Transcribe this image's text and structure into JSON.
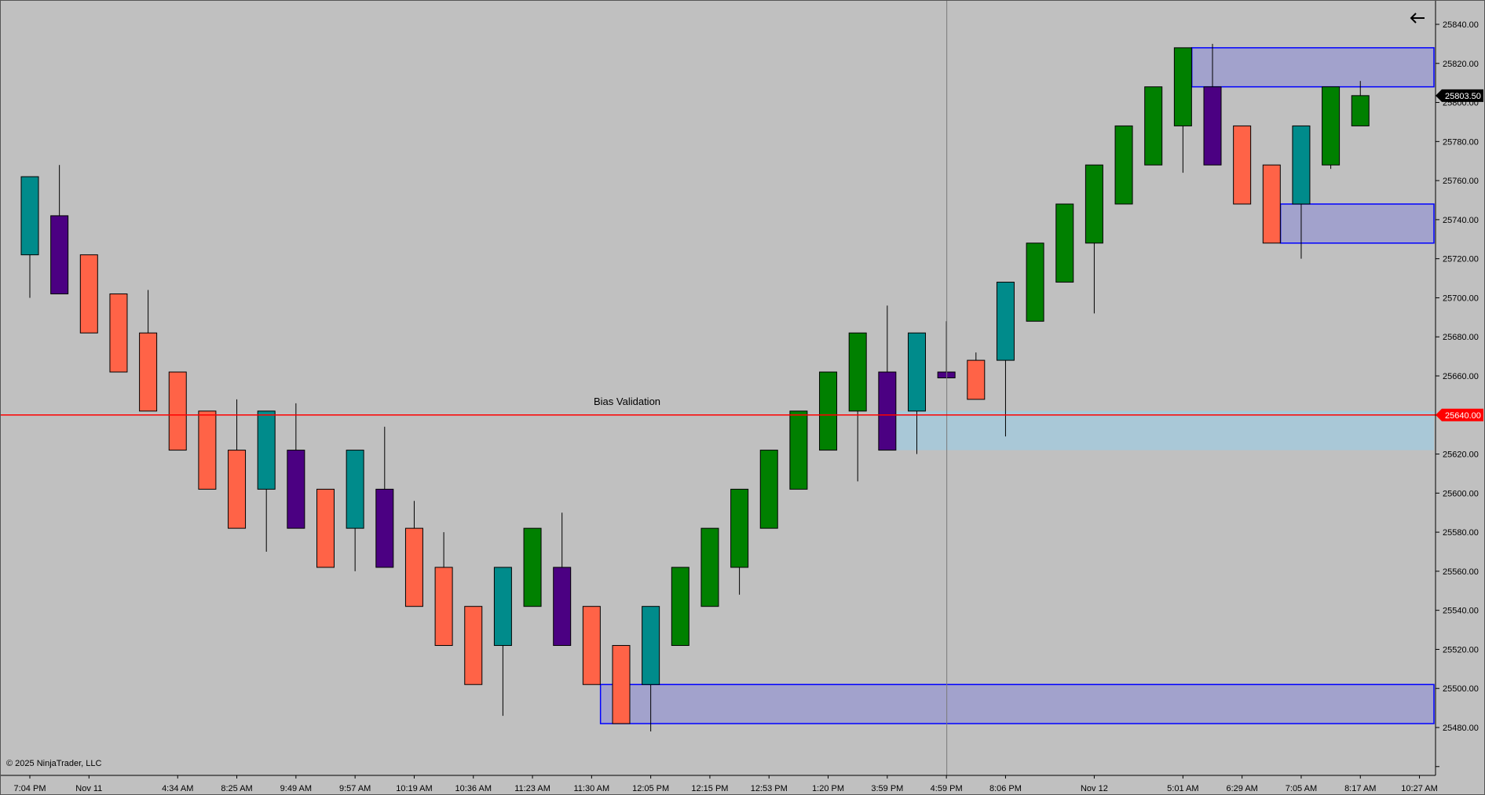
{
  "chart_data": {
    "type": "candlestick",
    "y_axis": {
      "ylim": [
        25470,
        25850
      ],
      "tick_labels": [
        "25840.00",
        "25820.00",
        "25800.00",
        "25780.00",
        "25760.00",
        "25740.00",
        "25720.00",
        "25700.00",
        "25680.00",
        "25660.00",
        "25640.00",
        "25620.00",
        "25600.00",
        "25580.00",
        "25560.00",
        "25540.00",
        "25520.00",
        "25500.00",
        "25480.00"
      ],
      "ticks": [
        25840,
        25820,
        25800,
        25780,
        25760,
        25740,
        25720,
        25700,
        25680,
        25660,
        25640,
        25620,
        25600,
        25580,
        25560,
        25540,
        25520,
        25500,
        25480
      ]
    },
    "x_axis": {
      "tick_labels": [
        {
          "label": "7:04 PM",
          "bar": 0
        },
        {
          "label": "Nov 11",
          "bar": 2
        },
        {
          "label": "4:34 AM",
          "bar": 5
        },
        {
          "label": "8:25 AM",
          "bar": 7
        },
        {
          "label": "9:49 AM",
          "bar": 9
        },
        {
          "label": "9:57 AM",
          "bar": 11
        },
        {
          "label": "10:19 AM",
          "bar": 13
        },
        {
          "label": "10:36 AM",
          "bar": 15
        },
        {
          "label": "11:23 AM",
          "bar": 17
        },
        {
          "label": "11:30 AM",
          "bar": 19
        },
        {
          "label": "12:05 PM",
          "bar": 21
        },
        {
          "label": "12:15 PM",
          "bar": 23
        },
        {
          "label": "12:53 PM",
          "bar": 25
        },
        {
          "label": "1:20 PM",
          "bar": 27
        },
        {
          "label": "3:59 PM",
          "bar": 29
        },
        {
          "label": "4:59 PM",
          "bar": 31
        },
        {
          "label": "8:06 PM",
          "bar": 33
        },
        {
          "label": "Nov 12",
          "bar": 36
        },
        {
          "label": "5:01 AM",
          "bar": 39
        },
        {
          "label": "6:29 AM",
          "bar": 41
        },
        {
          "label": "7:05 AM",
          "bar": 43
        },
        {
          "label": "8:17 AM",
          "bar": 45
        },
        {
          "label": "10:27 AM",
          "bar": 47
        }
      ]
    },
    "candles": [
      {
        "o": 25722,
        "h": 25762,
        "l": 25700,
        "c": 25762,
        "color": "#008b8b"
      },
      {
        "o": 25742,
        "h": 25768,
        "l": 25702,
        "c": 25702,
        "color": "#4b0082"
      },
      {
        "o": 25722,
        "h": 25722,
        "l": 25682,
        "c": 25682,
        "color": "#ff6347"
      },
      {
        "o": 25702,
        "h": 25702,
        "l": 25662,
        "c": 25662,
        "color": "#ff6347"
      },
      {
        "o": 25682,
        "h": 25704,
        "l": 25642,
        "c": 25642,
        "color": "#ff6347"
      },
      {
        "o": 25662,
        "h": 25662,
        "l": 25622,
        "c": 25622,
        "color": "#ff6347"
      },
      {
        "o": 25642,
        "h": 25642,
        "l": 25602,
        "c": 25602,
        "color": "#ff6347"
      },
      {
        "o": 25622,
        "h": 25648,
        "l": 25582,
        "c": 25582,
        "color": "#ff6347"
      },
      {
        "o": 25602,
        "h": 25642,
        "l": 25570,
        "c": 25642,
        "color": "#008b8b"
      },
      {
        "o": 25622,
        "h": 25646,
        "l": 25582,
        "c": 25582,
        "color": "#4b0082"
      },
      {
        "o": 25602,
        "h": 25602,
        "l": 25562,
        "c": 25562,
        "color": "#ff6347"
      },
      {
        "o": 25582,
        "h": 25622,
        "l": 25560,
        "c": 25622,
        "color": "#008b8b"
      },
      {
        "o": 25602,
        "h": 25634,
        "l": 25562,
        "c": 25562,
        "color": "#4b0082"
      },
      {
        "o": 25582,
        "h": 25596,
        "l": 25542,
        "c": 25542,
        "color": "#ff6347"
      },
      {
        "o": 25562,
        "h": 25580,
        "l": 25522,
        "c": 25522,
        "color": "#ff6347"
      },
      {
        "o": 25542,
        "h": 25542,
        "l": 25502,
        "c": 25502,
        "color": "#ff6347"
      },
      {
        "o": 25522,
        "h": 25562,
        "l": 25486,
        "c": 25562,
        "color": "#008b8b"
      },
      {
        "o": 25542,
        "h": 25582,
        "l": 25542,
        "c": 25582,
        "color": "#008000"
      },
      {
        "o": 25562,
        "h": 25590,
        "l": 25522,
        "c": 25522,
        "color": "#4b0082"
      },
      {
        "o": 25542,
        "h": 25542,
        "l": 25502,
        "c": 25502,
        "color": "#ff6347"
      },
      {
        "o": 25522,
        "h": 25522,
        "l": 25482,
        "c": 25482,
        "color": "#ff6347"
      },
      {
        "o": 25502,
        "h": 25542,
        "l": 25478,
        "c": 25542,
        "color": "#008b8b"
      },
      {
        "o": 25522,
        "h": 25562,
        "l": 25522,
        "c": 25562,
        "color": "#008000"
      },
      {
        "o": 25542,
        "h": 25582,
        "l": 25542,
        "c": 25582,
        "color": "#008000"
      },
      {
        "o": 25562,
        "h": 25602,
        "l": 25548,
        "c": 25602,
        "color": "#008000"
      },
      {
        "o": 25582,
        "h": 25622,
        "l": 25582,
        "c": 25622,
        "color": "#008000"
      },
      {
        "o": 25602,
        "h": 25642,
        "l": 25602,
        "c": 25642,
        "color": "#008000"
      },
      {
        "o": 25622,
        "h": 25662,
        "l": 25622,
        "c": 25662,
        "color": "#008000"
      },
      {
        "o": 25642,
        "h": 25682,
        "l": 25606,
        "c": 25682,
        "color": "#008000"
      },
      {
        "o": 25662,
        "h": 25696,
        "l": 25622,
        "c": 25622,
        "color": "#4b0082"
      },
      {
        "o": 25642,
        "h": 25682,
        "l": 25620,
        "c": 25682,
        "color": "#008b8b"
      },
      {
        "o": 25662,
        "h": 25688,
        "l": 25659,
        "c": 25659,
        "color": "#4b0082"
      },
      {
        "o": 25668,
        "h": 25672,
        "l": 25648,
        "c": 25648,
        "color": "#ff6347"
      },
      {
        "o": 25668,
        "h": 25708,
        "l": 25629,
        "c": 25708,
        "color": "#008b8b"
      },
      {
        "o": 25688,
        "h": 25728,
        "l": 25688,
        "c": 25728,
        "color": "#008000"
      },
      {
        "o": 25708,
        "h": 25748,
        "l": 25708,
        "c": 25748,
        "color": "#008000"
      },
      {
        "o": 25728,
        "h": 25768,
        "l": 25692,
        "c": 25768,
        "color": "#008000"
      },
      {
        "o": 25748,
        "h": 25788,
        "l": 25748,
        "c": 25788,
        "color": "#008000"
      },
      {
        "o": 25768,
        "h": 25808,
        "l": 25768,
        "c": 25808,
        "color": "#008000"
      },
      {
        "o": 25788,
        "h": 25828,
        "l": 25764,
        "c": 25828,
        "color": "#008000"
      },
      {
        "o": 25808,
        "h": 25830,
        "l": 25768,
        "c": 25768,
        "color": "#4b0082"
      },
      {
        "o": 25788,
        "h": 25788,
        "l": 25748,
        "c": 25748,
        "color": "#ff6347"
      },
      {
        "o": 25768,
        "h": 25768,
        "l": 25728,
        "c": 25728,
        "color": "#ff6347"
      },
      {
        "o": 25748,
        "h": 25788,
        "l": 25720,
        "c": 25788,
        "color": "#008b8b"
      },
      {
        "o": 25768,
        "h": 25808,
        "l": 25766,
        "c": 25808,
        "color": "#008000"
      },
      {
        "o": 25788,
        "h": 25811,
        "l": 25788,
        "c": 25803.5,
        "color": "#008000"
      }
    ],
    "zones": [
      {
        "from_bar": 39.3,
        "y_top": 25828,
        "y_bottom": 25808,
        "fill": "#a0a0cc",
        "stroke": "#0000ff"
      },
      {
        "from_bar": 42.3,
        "y_top": 25748,
        "y_bottom": 25728,
        "fill": "#a0a0cc",
        "stroke": "#0000ff"
      },
      {
        "from_bar": 19.3,
        "y_top": 25502,
        "y_bottom": 25482,
        "fill": "#a0a0cc",
        "stroke": "#0000ff"
      },
      {
        "from_bar": 29.3,
        "y_top": 25642,
        "y_bottom": 25622,
        "fill": "#a8c8d8",
        "stroke": "none"
      }
    ],
    "horizontal_line": {
      "value": 25640,
      "color": "#ff0000",
      "label": "Bias Validation"
    },
    "price_markers": [
      {
        "value": 25803.5,
        "text": "25803.50",
        "bg": "#000000",
        "fg": "#ffffff"
      },
      {
        "value": 25640,
        "text": "25640.00",
        "bg": "#ff0000",
        "fg": "#ffffff"
      }
    ],
    "crosshair_bar": 31,
    "copyright": "© 2025 NinjaTrader, LLC",
    "background": "#c0c0c0"
  }
}
